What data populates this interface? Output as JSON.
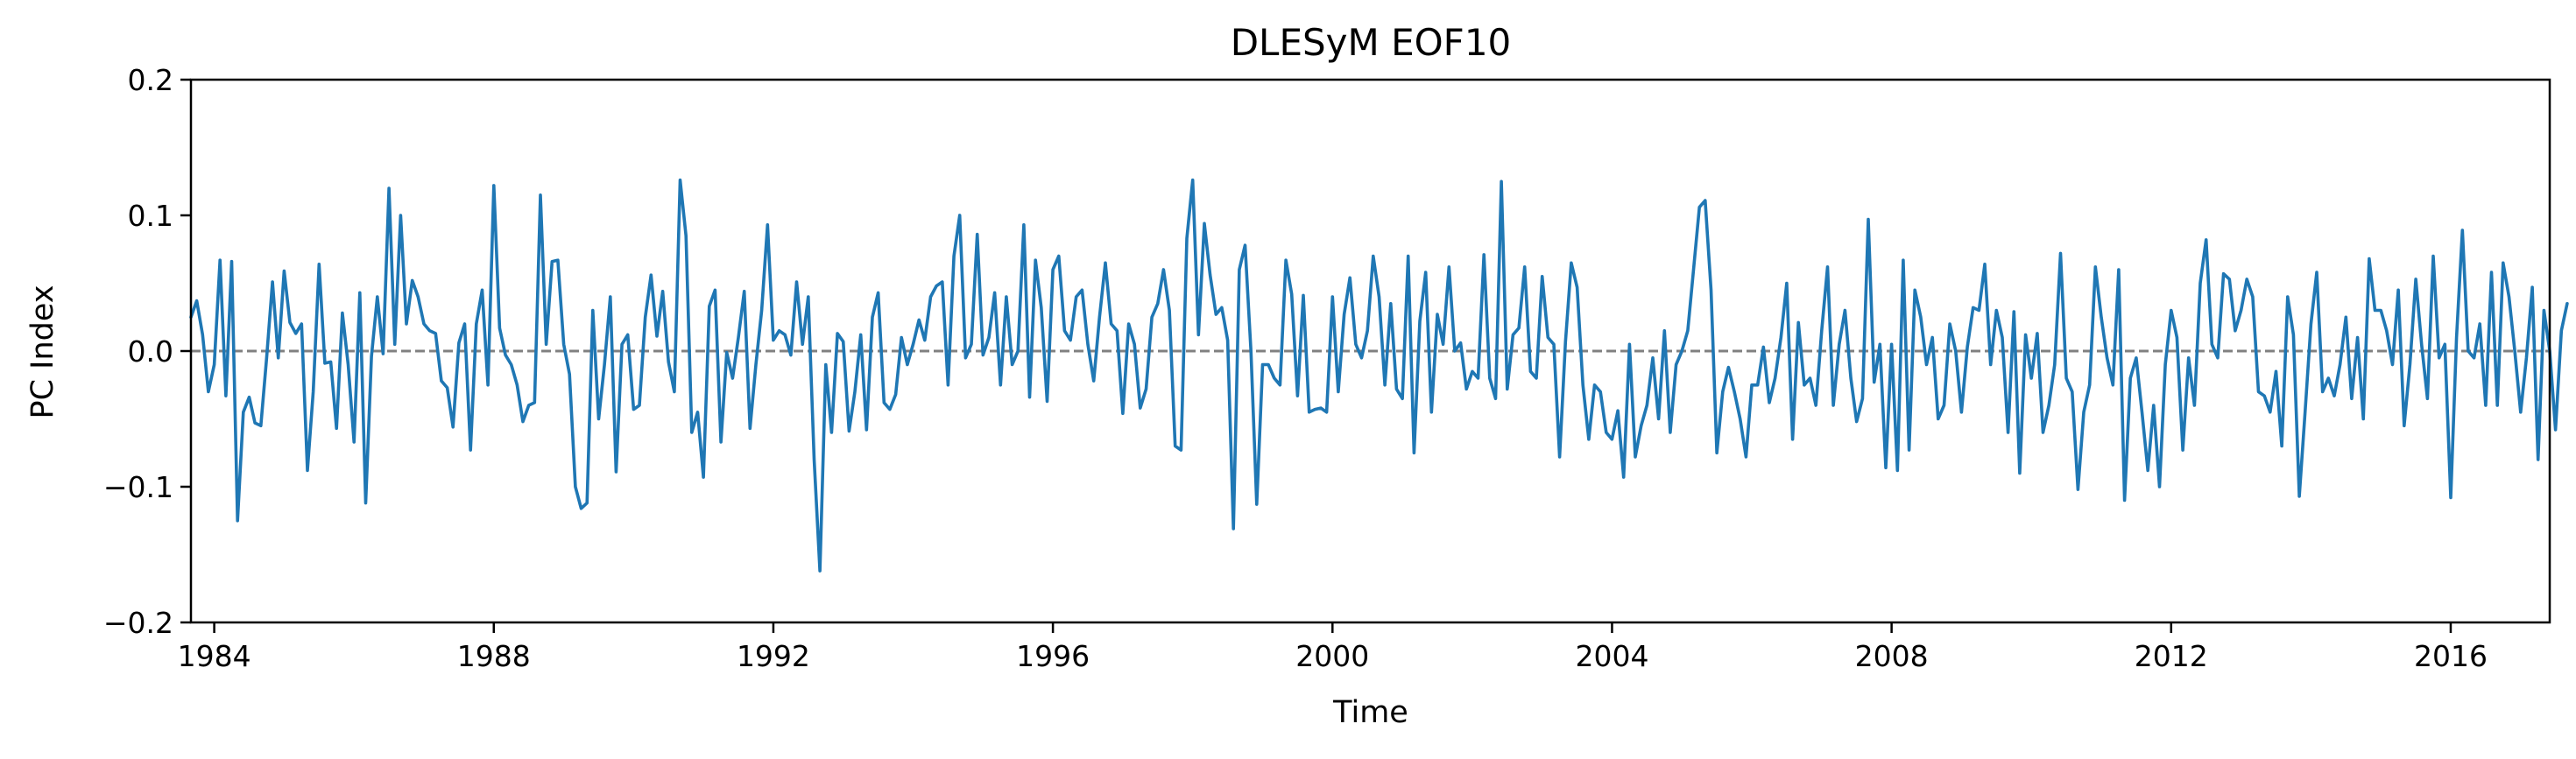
{
  "chart_data": {
    "type": "line",
    "title": "DLESyM  EOF10",
    "xlabel": "Time",
    "ylabel": "PC Index",
    "xlim": [
      "1983-09-01",
      "2017-06-01"
    ],
    "ylim": [
      -0.2,
      0.2
    ],
    "x_ticks": [
      "1984",
      "1988",
      "1992",
      "1996",
      "2000",
      "2004",
      "2008",
      "2012",
      "2016"
    ],
    "y_ticks": [
      "0.2",
      "0.1",
      "0.0",
      "−0.1",
      "−0.2"
    ],
    "reference_line": {
      "y": 0.0,
      "style": "dashed",
      "color": "#808080"
    },
    "grid": false,
    "colors": {
      "series": "#1f77b4",
      "reference": "#808080"
    },
    "series": [
      {
        "name": "",
        "x_start": "1983-09",
        "frequency": "monthly",
        "values": [
          0.025,
          0.037,
          0.012,
          -0.03,
          -0.01,
          0.067,
          -0.033,
          0.066,
          -0.125,
          -0.045,
          -0.034,
          -0.053,
          -0.055,
          -0.005,
          0.051,
          -0.005,
          0.059,
          0.021,
          0.013,
          0.02,
          -0.088,
          -0.03,
          0.064,
          -0.009,
          -0.008,
          -0.057,
          0.028,
          -0.01,
          -0.067,
          0.043,
          -0.112,
          -0.004,
          0.04,
          -0.002,
          0.12,
          0.005,
          0.1,
          0.02,
          0.052,
          0.04,
          0.02,
          0.015,
          0.013,
          -0.022,
          -0.027,
          -0.056,
          0.006,
          0.02,
          -0.073,
          0.02,
          0.045,
          -0.025,
          0.122,
          0.017,
          -0.003,
          -0.01,
          -0.025,
          -0.052,
          -0.04,
          -0.038,
          0.115,
          0.005,
          0.066,
          0.067,
          0.005,
          -0.017,
          -0.1,
          -0.116,
          -0.112,
          0.03,
          -0.05,
          -0.01,
          0.04,
          -0.089,
          0.005,
          0.012,
          -0.043,
          -0.04,
          0.025,
          0.056,
          0.011,
          0.044,
          -0.008,
          -0.03,
          0.126,
          0.085,
          -0.06,
          -0.045,
          -0.093,
          0.033,
          0.045,
          -0.067,
          -0.001,
          -0.02,
          0.01,
          0.044,
          -0.057,
          -0.01,
          0.03,
          0.093,
          0.008,
          0.015,
          0.012,
          -0.003,
          0.051,
          0.005,
          0.04,
          -0.08,
          -0.162,
          -0.01,
          -0.06,
          0.013,
          0.007,
          -0.059,
          -0.03,
          0.012,
          -0.058,
          0.025,
          0.043,
          -0.038,
          -0.043,
          -0.032,
          0.01,
          -0.01,
          0.005,
          0.023,
          0.008,
          0.04,
          0.048,
          0.051,
          -0.025,
          0.07,
          0.1,
          -0.005,
          0.005,
          0.086,
          -0.003,
          0.01,
          0.043,
          -0.025,
          0.04,
          -0.01,
          0.0,
          0.093,
          -0.034,
          0.067,
          0.032,
          -0.037,
          0.06,
          0.07,
          0.015,
          0.008,
          0.04,
          0.045,
          0.005,
          -0.022,
          0.025,
          0.065,
          0.02,
          0.015,
          -0.046,
          0.02,
          0.005,
          -0.042,
          -0.028,
          0.025,
          0.035,
          0.06,
          0.03,
          -0.07,
          -0.073,
          0.083,
          0.126,
          0.012,
          0.094,
          0.056,
          0.027,
          0.032,
          0.008,
          -0.131,
          0.06,
          0.078,
          0.0,
          -0.113,
          -0.01,
          -0.01,
          -0.02,
          -0.025,
          0.067,
          0.042,
          -0.033,
          0.041,
          -0.045,
          -0.043,
          -0.042,
          -0.045,
          0.04,
          -0.03,
          0.027,
          0.054,
          0.005,
          -0.005,
          0.015,
          0.07,
          0.04,
          -0.025,
          0.035,
          -0.028,
          -0.035,
          0.07,
          -0.075,
          0.022,
          0.058,
          -0.045,
          0.027,
          0.005,
          0.062,
          0.0,
          0.006,
          -0.028,
          -0.015,
          -0.02,
          0.071,
          -0.02,
          -0.035,
          0.125,
          -0.028,
          0.012,
          0.017,
          0.062,
          -0.015,
          -0.02,
          0.055,
          0.01,
          0.005,
          -0.078,
          0.007,
          0.065,
          0.047,
          -0.025,
          -0.065,
          -0.025,
          -0.03,
          -0.06,
          -0.065,
          -0.044,
          -0.093,
          0.005,
          -0.078,
          -0.055,
          -0.04,
          -0.005,
          -0.05,
          0.015,
          -0.06,
          -0.01,
          0.0,
          0.015,
          0.06,
          0.106,
          0.111,
          0.045,
          -0.075,
          -0.03,
          -0.012,
          -0.03,
          -0.05,
          -0.078,
          -0.025,
          -0.025,
          0.003,
          -0.038,
          -0.02,
          0.01,
          0.05,
          -0.065,
          0.021,
          -0.025,
          -0.02,
          -0.04,
          0.015,
          0.062,
          -0.04,
          0.005,
          0.03,
          -0.02,
          -0.052,
          -0.035,
          0.097,
          -0.023,
          0.005,
          -0.086,
          0.005,
          -0.088,
          0.067,
          -0.073,
          0.045,
          0.025,
          -0.01,
          0.01,
          -0.05,
          -0.04,
          0.02,
          0.0,
          -0.045,
          0.003,
          0.032,
          0.03,
          0.064,
          -0.01,
          0.03,
          0.01,
          -0.06,
          0.029,
          -0.09,
          0.012,
          -0.02,
          0.013,
          -0.06,
          -0.04,
          -0.01,
          0.072,
          -0.02,
          -0.03,
          -0.102,
          -0.045,
          -0.025,
          0.062,
          0.025,
          -0.005,
          -0.025,
          0.06,
          -0.11,
          -0.02,
          -0.005,
          -0.045,
          -0.088,
          -0.04,
          -0.1,
          -0.01,
          0.03,
          0.01,
          -0.073,
          -0.005,
          -0.04,
          0.05,
          0.082,
          0.005,
          -0.005,
          0.057,
          0.053,
          0.015,
          0.03,
          0.053,
          0.04,
          -0.03,
          -0.033,
          -0.045,
          -0.015,
          -0.07,
          0.04,
          0.012,
          -0.107,
          -0.045,
          0.02,
          0.058,
          -0.03,
          -0.02,
          -0.033,
          -0.01,
          0.025,
          -0.035,
          0.01,
          -0.05,
          0.068,
          0.03,
          0.03,
          0.015,
          -0.01,
          0.045,
          -0.055,
          -0.01,
          0.053,
          0.005,
          -0.035,
          0.07,
          -0.005,
          0.005,
          -0.108,
          0.01,
          0.089,
          0.0,
          -0.005,
          0.02,
          -0.04,
          0.058,
          -0.04,
          0.065,
          0.04,
          0.0,
          -0.045,
          -0.005,
          0.047,
          -0.08,
          0.03,
          0.0,
          -0.058,
          0.015,
          0.035
        ]
      }
    ]
  }
}
